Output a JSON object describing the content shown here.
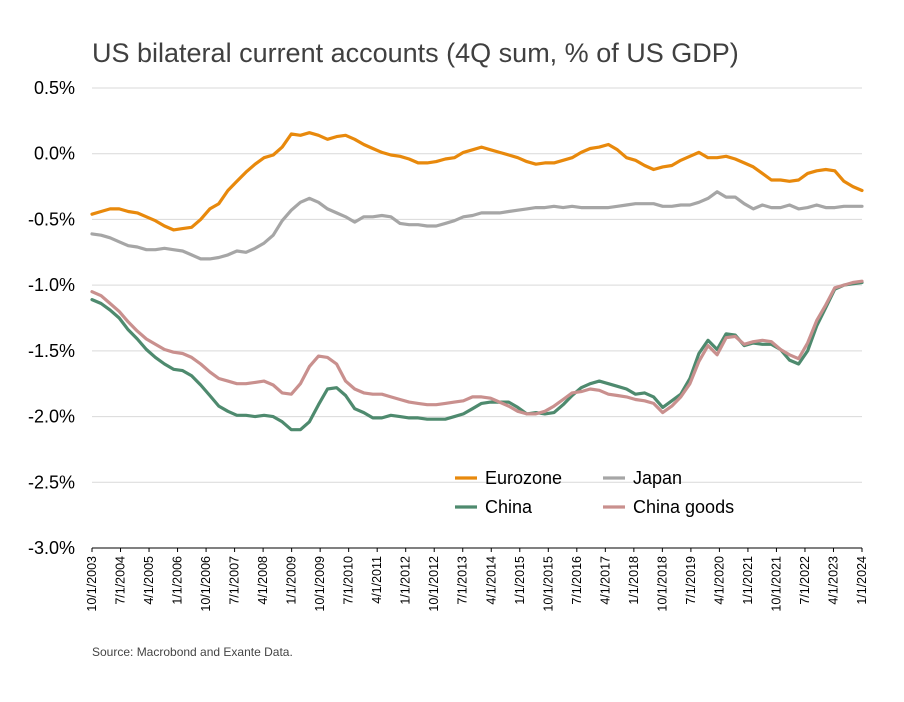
{
  "chart_data": {
    "type": "line",
    "title": "US bilateral current accounts (4Q sum, % of US GDP)",
    "source": "Source: Macrobond and Exante Data.",
    "y_ticks": [
      "0.5%",
      "0.0%",
      "-0.5%",
      "-1.0%",
      "-1.5%",
      "-2.0%",
      "-2.5%",
      "-3.0%"
    ],
    "ylim": [
      -3.0,
      0.5
    ],
    "x_ticks": [
      "10/1/2003",
      "7/1/2004",
      "4/1/2005",
      "1/1/2006",
      "10/1/2006",
      "7/1/2007",
      "4/1/2008",
      "1/1/2009",
      "10/1/2009",
      "7/1/2010",
      "4/1/2011",
      "1/1/2012",
      "10/1/2012",
      "7/1/2013",
      "4/1/2014",
      "1/1/2015",
      "10/1/2015",
      "7/1/2016",
      "4/1/2017",
      "1/1/2018",
      "10/1/2018",
      "7/1/2019",
      "4/1/2020",
      "1/1/2021",
      "10/1/2021",
      "7/1/2022",
      "4/1/2023",
      "1/1/2024"
    ],
    "grid": true,
    "legend_position": "lower-right",
    "series": [
      {
        "name": "Eurozone",
        "color": "#E8890C",
        "values": [
          -0.46,
          -0.44,
          -0.42,
          -0.42,
          -0.44,
          -0.45,
          -0.48,
          -0.51,
          -0.55,
          -0.58,
          -0.57,
          -0.56,
          -0.5,
          -0.42,
          -0.38,
          -0.28,
          -0.21,
          -0.14,
          -0.08,
          -0.03,
          -0.01,
          0.05,
          0.15,
          0.14,
          0.16,
          0.14,
          0.11,
          0.13,
          0.14,
          0.11,
          0.07,
          0.04,
          0.01,
          -0.01,
          -0.02,
          -0.04,
          -0.07,
          -0.07,
          -0.06,
          -0.04,
          -0.03,
          0.01,
          0.03,
          0.05,
          0.03,
          0.01,
          -0.01,
          -0.03,
          -0.06,
          -0.08,
          -0.07,
          -0.07,
          -0.05,
          -0.03,
          0.01,
          0.04,
          0.05,
          0.07,
          0.03,
          -0.03,
          -0.05,
          -0.09,
          -0.12,
          -0.1,
          -0.09,
          -0.05,
          -0.02,
          0.01,
          -0.03,
          -0.03,
          -0.02,
          -0.04,
          -0.07,
          -0.1,
          -0.15,
          -0.2,
          -0.2,
          -0.21,
          -0.2,
          -0.15,
          -0.13,
          -0.12,
          -0.13,
          -0.21,
          -0.25,
          -0.28
        ]
      },
      {
        "name": "Japan",
        "color": "#A6A6A6",
        "values": [
          -0.61,
          -0.62,
          -0.64,
          -0.67,
          -0.7,
          -0.71,
          -0.73,
          -0.73,
          -0.72,
          -0.73,
          -0.74,
          -0.77,
          -0.8,
          -0.8,
          -0.79,
          -0.77,
          -0.74,
          -0.75,
          -0.72,
          -0.68,
          -0.62,
          -0.51,
          -0.43,
          -0.37,
          -0.34,
          -0.37,
          -0.42,
          -0.45,
          -0.48,
          -0.52,
          -0.48,
          -0.48,
          -0.47,
          -0.48,
          -0.53,
          -0.54,
          -0.54,
          -0.55,
          -0.55,
          -0.53,
          -0.51,
          -0.48,
          -0.47,
          -0.45,
          -0.45,
          -0.45,
          -0.44,
          -0.43,
          -0.42,
          -0.41,
          -0.41,
          -0.4,
          -0.41,
          -0.4,
          -0.41,
          -0.41,
          -0.41,
          -0.41,
          -0.4,
          -0.39,
          -0.38,
          -0.38,
          -0.38,
          -0.4,
          -0.4,
          -0.39,
          -0.39,
          -0.37,
          -0.34,
          -0.29,
          -0.33,
          -0.33,
          -0.38,
          -0.42,
          -0.39,
          -0.41,
          -0.41,
          -0.39,
          -0.42,
          -0.41,
          -0.39,
          -0.41,
          -0.41,
          -0.4,
          -0.4,
          -0.4
        ]
      },
      {
        "name": "China",
        "color": "#4E8A6E",
        "values": [
          -1.11,
          -1.14,
          -1.19,
          -1.25,
          -1.34,
          -1.41,
          -1.49,
          -1.55,
          -1.6,
          -1.64,
          -1.65,
          -1.69,
          -1.76,
          -1.84,
          -1.92,
          -1.96,
          -1.99,
          -1.99,
          -2.0,
          -1.99,
          -2.0,
          -2.04,
          -2.1,
          -2.1,
          -2.04,
          -1.91,
          -1.79,
          -1.78,
          -1.84,
          -1.94,
          -1.97,
          -2.01,
          -2.01,
          -1.99,
          -2.0,
          -2.01,
          -2.01,
          -2.02,
          -2.02,
          -2.02,
          -2.0,
          -1.98,
          -1.94,
          -1.9,
          -1.89,
          -1.89,
          -1.89,
          -1.93,
          -1.98,
          -1.97,
          -1.98,
          -1.97,
          -1.91,
          -1.84,
          -1.78,
          -1.75,
          -1.73,
          -1.75,
          -1.77,
          -1.79,
          -1.83,
          -1.82,
          -1.85,
          -1.93,
          -1.88,
          -1.83,
          -1.71,
          -1.52,
          -1.42,
          -1.49,
          -1.37,
          -1.38,
          -1.46,
          -1.44,
          -1.45,
          -1.45,
          -1.49,
          -1.57,
          -1.6,
          -1.5,
          -1.31,
          -1.17,
          -1.03,
          -1.0,
          -0.99,
          -0.98
        ]
      },
      {
        "name": "China goods",
        "color": "#C9908E",
        "values": [
          -1.05,
          -1.08,
          -1.14,
          -1.2,
          -1.28,
          -1.35,
          -1.41,
          -1.45,
          -1.49,
          -1.51,
          -1.52,
          -1.55,
          -1.6,
          -1.66,
          -1.71,
          -1.73,
          -1.75,
          -1.75,
          -1.74,
          -1.73,
          -1.76,
          -1.82,
          -1.83,
          -1.75,
          -1.62,
          -1.54,
          -1.55,
          -1.6,
          -1.73,
          -1.79,
          -1.82,
          -1.83,
          -1.83,
          -1.85,
          -1.87,
          -1.89,
          -1.9,
          -1.91,
          -1.91,
          -1.9,
          -1.89,
          -1.88,
          -1.85,
          -1.85,
          -1.86,
          -1.89,
          -1.92,
          -1.96,
          -1.98,
          -1.98,
          -1.96,
          -1.92,
          -1.87,
          -1.82,
          -1.81,
          -1.79,
          -1.8,
          -1.83,
          -1.84,
          -1.85,
          -1.87,
          -1.88,
          -1.9,
          -1.97,
          -1.92,
          -1.85,
          -1.75,
          -1.58,
          -1.46,
          -1.53,
          -1.4,
          -1.39,
          -1.45,
          -1.43,
          -1.42,
          -1.43,
          -1.49,
          -1.53,
          -1.56,
          -1.44,
          -1.27,
          -1.15,
          -1.02,
          -1.0,
          -0.98,
          -0.97
        ]
      }
    ]
  }
}
